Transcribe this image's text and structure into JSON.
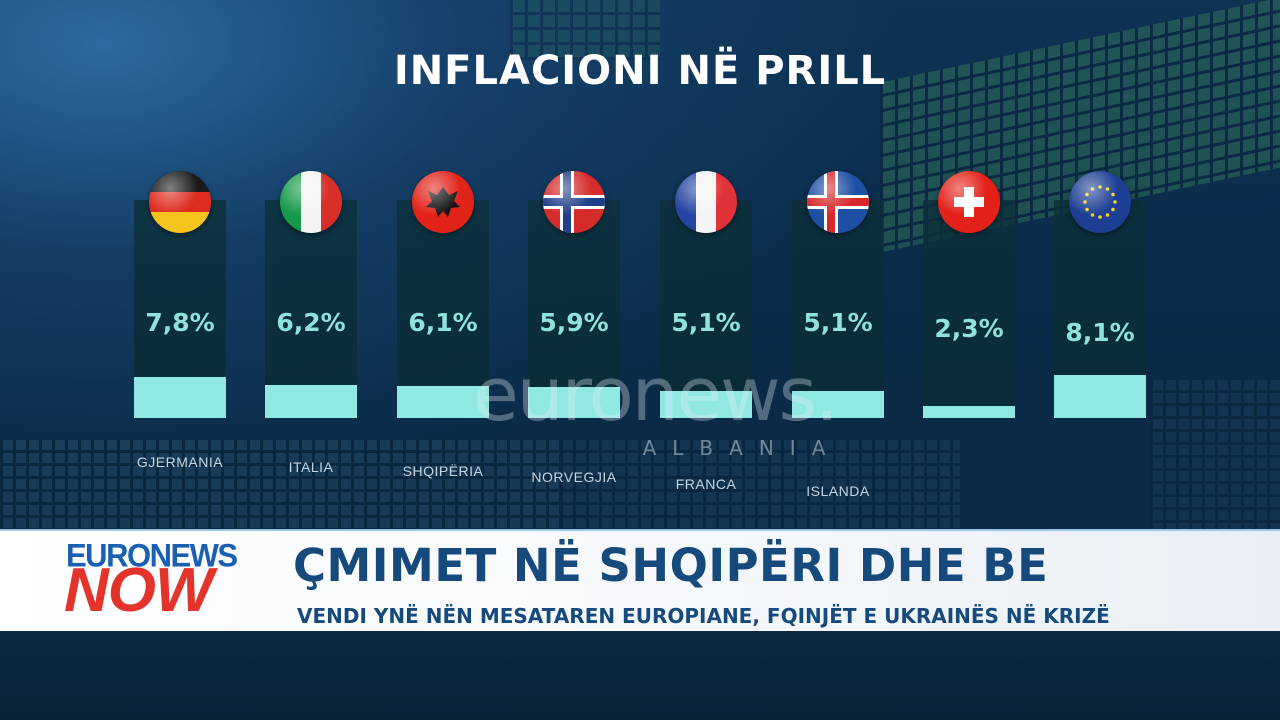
{
  "chart_data": {
    "type": "bar",
    "title": "INFLACIONI NË PRILL",
    "categories": [
      "GJERMANIA",
      "ITALIA",
      "SHQIPËRIA",
      "NORVEGJIA",
      "FRANCA",
      "ISLANDA",
      "",
      ""
    ],
    "values": [
      7.8,
      6.2,
      6.1,
      5.9,
      5.1,
      5.1,
      2.3,
      8.1
    ],
    "value_labels": [
      "7,8%",
      "6,2%",
      "6,1%",
      "5,9%",
      "5,1%",
      "5,1%",
      "2,3%",
      "8,1%"
    ],
    "flags": [
      "germany-flag",
      "italy-flag",
      "albania-flag",
      "norway-flag",
      "france-flag",
      "iceland-flag",
      "switzerland-flag",
      "eu-flag"
    ],
    "bar_color": "#8fe8e2",
    "grid": false
  },
  "watermark": {
    "brand": "euronews.",
    "sub": "ALBANIA"
  },
  "lower_third": {
    "logo_top": "EURONEWS",
    "logo_bottom": "NOW",
    "headline": "ÇMIMET NË SHQIPËRI DHE BE",
    "subheadline": "VENDI YNË NËN MESATAREN EUROPIANE, FQINJËT E UKRAINËS NË KRIZË"
  },
  "colors": {
    "headline": "#174a7c",
    "logo_blue": "#1a5fb4",
    "logo_red": "#e2342b"
  }
}
